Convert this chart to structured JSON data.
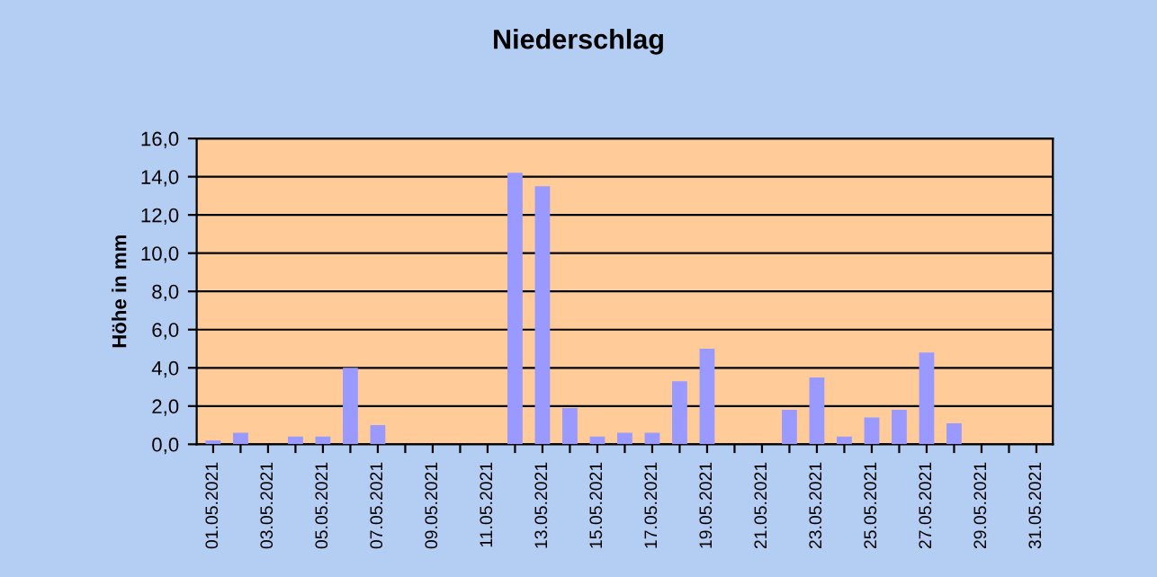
{
  "chart_data": {
    "type": "bar",
    "title": "Niederschlag",
    "ylabel": "Höhe in mm",
    "categories": [
      "01.05.2021",
      null,
      "03.05.2021",
      null,
      "05.05.2021",
      null,
      "07.05.2021",
      null,
      "09.05.2021",
      null,
      "11.05.2021",
      null,
      "13.05.2021",
      null,
      "15.05.2021",
      null,
      "17.05.2021",
      null,
      "19.05.2021",
      null,
      "21.05.2021",
      null,
      "23.05.2021",
      null,
      "25.05.2021",
      null,
      "27.05.2021",
      null,
      "29.05.2021",
      null,
      "31.05.2021"
    ],
    "values": [
      0.2,
      0.6,
      0,
      0.4,
      0.4,
      4.0,
      1.0,
      0,
      0,
      0,
      0,
      14.2,
      13.5,
      1.9,
      0.4,
      0.6,
      0.6,
      3.3,
      5.0,
      0,
      0,
      1.8,
      3.5,
      0.4,
      1.4,
      1.8,
      4.8,
      1.1,
      0,
      0,
      0
    ],
    "color": "#9999ff",
    "ylim": [
      0,
      16
    ],
    "yticks": [
      {
        "value": 0,
        "label": "0,0"
      },
      {
        "value": 2,
        "label": "2,0"
      },
      {
        "value": 4,
        "label": "4,0"
      },
      {
        "value": 6,
        "label": "6,0"
      },
      {
        "value": 8,
        "label": "8,0"
      },
      {
        "value": 10,
        "label": "10,0"
      },
      {
        "value": 12,
        "label": "12,0"
      },
      {
        "value": 14,
        "label": "14,0"
      },
      {
        "value": 16,
        "label": "16,0"
      }
    ],
    "grid": "y",
    "legend": false
  }
}
